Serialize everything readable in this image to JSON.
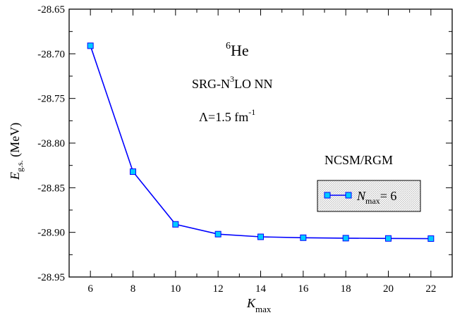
{
  "chart_data": {
    "type": "line",
    "x_ticks": [
      "6",
      "8",
      "10",
      "12",
      "14",
      "16",
      "18",
      "20",
      "22"
    ],
    "y_ticks": [
      "-28.95",
      "-28.90",
      "-28.85",
      "-28.80",
      "-28.75",
      "-28.70",
      "-28.65"
    ],
    "xlim": [
      5,
      23
    ],
    "ylim": [
      -28.95,
      -28.65
    ],
    "xlabel": {
      "main": "K",
      "sub": "max"
    },
    "ylabel": {
      "main": "E",
      "sub": "g.s.",
      "unit": " (MeV)"
    },
    "annotations": {
      "nucleus": {
        "sup": "6",
        "main": "He"
      },
      "interaction": {
        "pre": "SRG-N",
        "sup": "3",
        "post": "LO NN"
      },
      "cutoff": {
        "pre": "Λ=1.5 fm",
        "sup": "-1"
      },
      "method": "NCSM/RGM"
    },
    "legend": {
      "position": "right",
      "entry": {
        "main": "N",
        "sub": "max",
        "post": "= 6"
      }
    },
    "series": [
      {
        "x": [
          6,
          8,
          10,
          12,
          14,
          16,
          18,
          20,
          22
        ],
        "y": [
          -28.691,
          -28.832,
          -28.891,
          -28.902,
          -28.905,
          -28.906,
          -28.9065,
          -28.9068,
          -28.907
        ],
        "line_color": "#0000ff",
        "marker_color": "#00ccff"
      }
    ]
  }
}
